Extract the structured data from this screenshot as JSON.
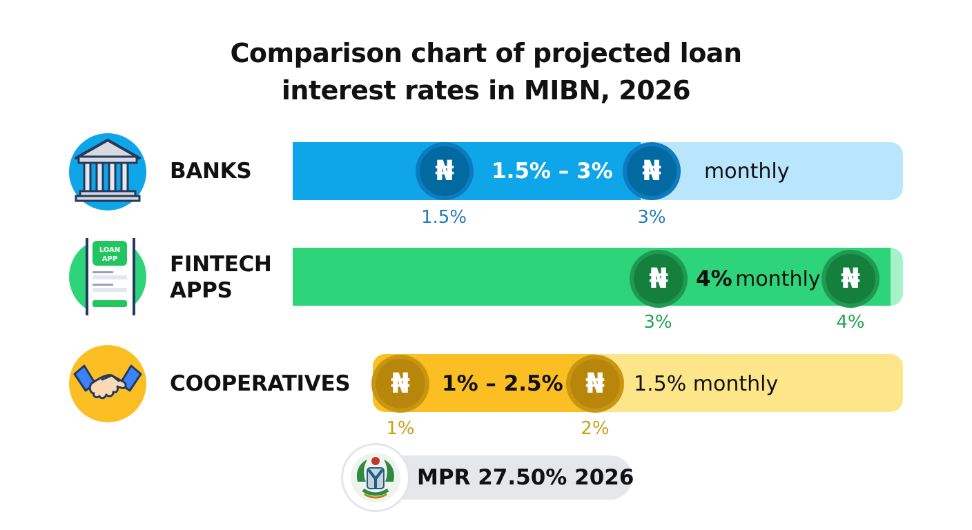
{
  "chart_data": {
    "type": "bar",
    "title": "Comparison chart of projected loan interest rates in MIBN, 2026",
    "title_lines": [
      "Comparison chart of projected loan",
      "interest rates in MIBN, 2026"
    ],
    "currency_symbol": "₦",
    "series": [
      {
        "category": "BANKS",
        "label_lines": [
          "BANKS"
        ],
        "icon": "bank-building-icon",
        "range_text": "1.5% – 3%",
        "monthly_text": "monthly",
        "ticks": [
          {
            "label": "1.5%",
            "value": 1.5
          },
          {
            "label": "3%",
            "value": 3
          }
        ],
        "fill": 0.57,
        "colors": {
          "fill": "#0ea5e9",
          "track": "#bae6fd",
          "badge": "#0369a1",
          "badge_ring": "#0c7bc0",
          "tick": "#1f7bbd",
          "text": "#ffffff"
        }
      },
      {
        "category": "FINTECH APPS",
        "label_lines": [
          "FINTECH",
          "APPS"
        ],
        "icon": "loan-app-phone-icon",
        "range_text": "4%",
        "monthly_text": "monthly",
        "ticks": [
          {
            "label": "3%",
            "value": 3
          },
          {
            "label": "4%",
            "value": 4
          }
        ],
        "fill": 0.98,
        "colors": {
          "fill": "#2ed47a",
          "track": "#a7f3c7",
          "badge": "#15803d",
          "badge_ring": "#1f9a50",
          "tick": "#22a351",
          "text": "#111111"
        }
      },
      {
        "category": "COOPERATIVES",
        "label_lines": [
          "COOPERATIVES"
        ],
        "icon": "handshake-icon",
        "range_text": "1% – 2.5%",
        "monthly_text": "1.5% monthly",
        "ticks": [
          {
            "label": "1%",
            "value": 1
          },
          {
            "label": "2%",
            "value": 2
          }
        ],
        "fill": 0.42,
        "colors": {
          "fill": "#fbbf24",
          "track": "#fde68a",
          "badge": "#b8860b",
          "badge_ring": "#c99612",
          "tick": "#c8a116",
          "text": "#111111"
        }
      }
    ],
    "mpr": {
      "text": "MPR 27.50% 2026",
      "icon": "central-bank-seal-icon"
    }
  }
}
